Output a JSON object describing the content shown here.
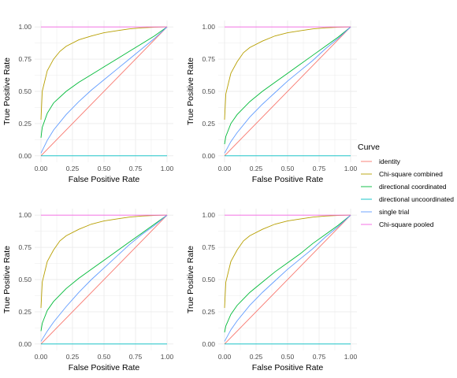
{
  "legend": {
    "title": "Curve",
    "entries": [
      {
        "name": "identity",
        "color": "#F8766D"
      },
      {
        "name": "Chi-square combined",
        "color": "#B79F00"
      },
      {
        "name": "directional coordinated",
        "color": "#00BA38"
      },
      {
        "name": "directional uncoordinated",
        "color": "#00BFC4"
      },
      {
        "name": "single trial",
        "color": "#619CFF"
      },
      {
        "name": "Chi-square pooled",
        "color": "#F564E3"
      }
    ]
  },
  "chart_data": [
    {
      "type": "line",
      "xlabel": "False Positive Rate",
      "ylabel": "True Positive Rate",
      "xlim": [
        0,
        1
      ],
      "ylim": [
        0,
        1
      ],
      "xticks": [
        "0.00",
        "0.25",
        "0.50",
        "0.75",
        "1.00"
      ],
      "yticks": [
        "0.00",
        "0.25",
        "0.50",
        "0.75",
        "1.00"
      ],
      "grid": true,
      "series": [
        {
          "name": "identity",
          "x": [
            0,
            1
          ],
          "y": [
            0,
            1
          ]
        },
        {
          "name": "Chi-square combined",
          "x": [
            0,
            0.01,
            0.05,
            0.1,
            0.15,
            0.2,
            0.3,
            0.4,
            0.5,
            0.6,
            0.7,
            0.8,
            0.9,
            1.0
          ],
          "y": [
            0.28,
            0.5,
            0.66,
            0.75,
            0.81,
            0.85,
            0.9,
            0.93,
            0.955,
            0.97,
            0.985,
            0.993,
            0.998,
            1.0
          ]
        },
        {
          "name": "directional coordinated",
          "x": [
            0,
            0.01,
            0.05,
            0.1,
            0.2,
            0.3,
            0.4,
            0.5,
            0.6,
            0.7,
            0.8,
            0.9,
            1.0
          ],
          "y": [
            0.14,
            0.22,
            0.33,
            0.41,
            0.5,
            0.57,
            0.63,
            0.69,
            0.75,
            0.81,
            0.87,
            0.93,
            1.0
          ]
        },
        {
          "name": "directional uncoordinated",
          "x": [
            0,
            1
          ],
          "y": [
            0.0,
            0.0
          ]
        },
        {
          "name": "single trial",
          "x": [
            0,
            0.05,
            0.1,
            0.2,
            0.3,
            0.4,
            0.5,
            0.6,
            0.7,
            0.8,
            0.9,
            1.0
          ],
          "y": [
            0.02,
            0.12,
            0.2,
            0.32,
            0.42,
            0.51,
            0.59,
            0.67,
            0.75,
            0.83,
            0.91,
            1.0
          ]
        },
        {
          "name": "Chi-square pooled",
          "x": [
            0,
            1
          ],
          "y": [
            1.0,
            1.0
          ]
        }
      ]
    },
    {
      "type": "line",
      "xlabel": "False Positive Rate",
      "ylabel": "True Positive Rate",
      "xlim": [
        0,
        1
      ],
      "ylim": [
        0,
        1
      ],
      "xticks": [
        "0.00",
        "0.25",
        "0.50",
        "0.75",
        "1.00"
      ],
      "yticks": [
        "0.00",
        "0.25",
        "0.50",
        "0.75",
        "1.00"
      ],
      "grid": true,
      "series": [
        {
          "name": "identity",
          "x": [
            0,
            1
          ],
          "y": [
            0,
            1
          ]
        },
        {
          "name": "Chi-square combined",
          "x": [
            0,
            0.01,
            0.05,
            0.1,
            0.15,
            0.2,
            0.3,
            0.4,
            0.5,
            0.6,
            0.7,
            0.8,
            0.9,
            1.0
          ],
          "y": [
            0.28,
            0.48,
            0.64,
            0.73,
            0.8,
            0.84,
            0.89,
            0.93,
            0.955,
            0.97,
            0.985,
            0.993,
            0.998,
            1.0
          ]
        },
        {
          "name": "directional coordinated",
          "x": [
            0,
            0.01,
            0.05,
            0.1,
            0.2,
            0.3,
            0.4,
            0.5,
            0.6,
            0.7,
            0.8,
            0.9,
            1.0
          ],
          "y": [
            0.09,
            0.15,
            0.25,
            0.32,
            0.42,
            0.5,
            0.57,
            0.64,
            0.71,
            0.78,
            0.85,
            0.92,
            1.0
          ]
        },
        {
          "name": "directional uncoordinated",
          "x": [
            0,
            1
          ],
          "y": [
            0.0,
            0.0
          ]
        },
        {
          "name": "single trial",
          "x": [
            0,
            0.05,
            0.1,
            0.2,
            0.3,
            0.4,
            0.5,
            0.6,
            0.7,
            0.8,
            0.9,
            1.0
          ],
          "y": [
            0.02,
            0.11,
            0.18,
            0.3,
            0.4,
            0.49,
            0.58,
            0.66,
            0.74,
            0.83,
            0.91,
            1.0
          ]
        },
        {
          "name": "Chi-square pooled",
          "x": [
            0,
            1
          ],
          "y": [
            1.0,
            1.0
          ]
        }
      ]
    },
    {
      "type": "line",
      "xlabel": "False Positive Rate",
      "ylabel": "True Positive Rate",
      "xlim": [
        0,
        1
      ],
      "ylim": [
        0,
        1
      ],
      "xticks": [
        "0.00",
        "0.25",
        "0.50",
        "0.75",
        "1.00"
      ],
      "yticks": [
        "0.00",
        "0.25",
        "0.50",
        "0.75",
        "1.00"
      ],
      "grid": true,
      "series": [
        {
          "name": "identity",
          "x": [
            0,
            1
          ],
          "y": [
            0,
            1
          ]
        },
        {
          "name": "Chi-square combined",
          "x": [
            0,
            0.01,
            0.05,
            0.1,
            0.15,
            0.2,
            0.3,
            0.4,
            0.5,
            0.6,
            0.7,
            0.8,
            0.9,
            1.0
          ],
          "y": [
            0.28,
            0.48,
            0.64,
            0.73,
            0.8,
            0.84,
            0.89,
            0.93,
            0.955,
            0.97,
            0.985,
            0.993,
            0.998,
            1.0
          ]
        },
        {
          "name": "directional coordinated",
          "x": [
            0,
            0.01,
            0.05,
            0.1,
            0.2,
            0.3,
            0.4,
            0.5,
            0.6,
            0.7,
            0.8,
            0.9,
            1.0
          ],
          "y": [
            0.1,
            0.16,
            0.26,
            0.33,
            0.43,
            0.51,
            0.58,
            0.65,
            0.72,
            0.79,
            0.86,
            0.93,
            1.0
          ]
        },
        {
          "name": "directional uncoordinated",
          "x": [
            0,
            1
          ],
          "y": [
            0.0,
            0.0
          ]
        },
        {
          "name": "single trial",
          "x": [
            0,
            0.05,
            0.1,
            0.2,
            0.3,
            0.4,
            0.5,
            0.6,
            0.7,
            0.8,
            0.9,
            1.0
          ],
          "y": [
            0.02,
            0.1,
            0.17,
            0.29,
            0.4,
            0.5,
            0.59,
            0.68,
            0.77,
            0.85,
            0.92,
            1.0
          ]
        },
        {
          "name": "Chi-square pooled",
          "x": [
            0,
            1
          ],
          "y": [
            1.0,
            1.0
          ]
        }
      ]
    },
    {
      "type": "line",
      "xlabel": "False Positive Rate",
      "ylabel": "True Positive Rate",
      "xlim": [
        0,
        1
      ],
      "ylim": [
        0,
        1
      ],
      "xticks": [
        "0.00",
        "0.25",
        "0.50",
        "0.75",
        "1.00"
      ],
      "yticks": [
        "0.00",
        "0.25",
        "0.50",
        "0.75",
        "1.00"
      ],
      "grid": true,
      "series": [
        {
          "name": "identity",
          "x": [
            0,
            1
          ],
          "y": [
            0,
            1
          ]
        },
        {
          "name": "Chi-square combined",
          "x": [
            0,
            0.01,
            0.05,
            0.1,
            0.15,
            0.2,
            0.3,
            0.4,
            0.5,
            0.6,
            0.7,
            0.8,
            0.9,
            1.0
          ],
          "y": [
            0.28,
            0.48,
            0.64,
            0.73,
            0.8,
            0.84,
            0.89,
            0.93,
            0.955,
            0.97,
            0.985,
            0.993,
            0.998,
            1.0
          ]
        },
        {
          "name": "directional coordinated",
          "x": [
            0,
            0.01,
            0.05,
            0.1,
            0.2,
            0.3,
            0.4,
            0.5,
            0.6,
            0.7,
            0.8,
            0.9,
            1.0
          ],
          "y": [
            0.09,
            0.14,
            0.23,
            0.3,
            0.4,
            0.48,
            0.56,
            0.63,
            0.7,
            0.78,
            0.85,
            0.92,
            1.0
          ]
        },
        {
          "name": "directional uncoordinated",
          "x": [
            0,
            1
          ],
          "y": [
            0.0,
            0.0
          ]
        },
        {
          "name": "single trial",
          "x": [
            0,
            0.05,
            0.1,
            0.2,
            0.3,
            0.4,
            0.5,
            0.6,
            0.7,
            0.8,
            0.9,
            1.0
          ],
          "y": [
            0.02,
            0.11,
            0.18,
            0.3,
            0.4,
            0.49,
            0.58,
            0.66,
            0.74,
            0.83,
            0.91,
            1.0
          ]
        },
        {
          "name": "Chi-square pooled",
          "x": [
            0,
            1
          ],
          "y": [
            1.0,
            1.0
          ]
        }
      ]
    }
  ]
}
